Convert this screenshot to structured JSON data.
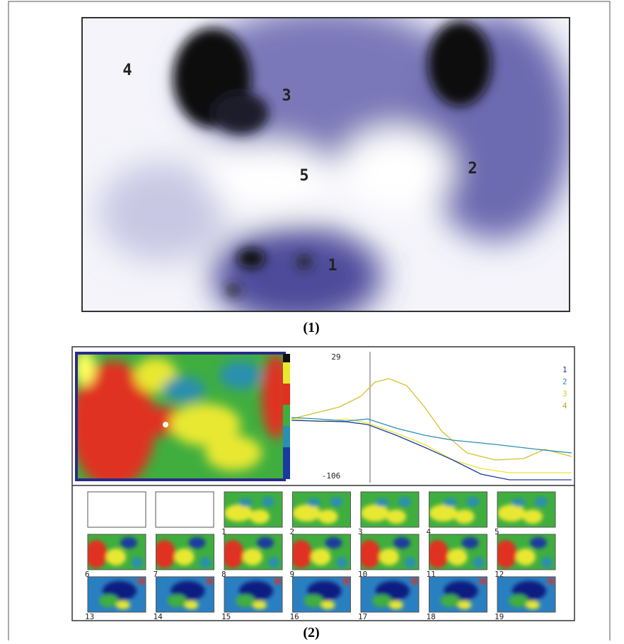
{
  "figure1": {
    "labels": [
      "4",
      "3",
      "5",
      "2",
      "1"
    ],
    "caption": "(1)"
  },
  "figure2": {
    "max_label": "29",
    "min_label": "-106",
    "legend": [
      "1",
      "2",
      "3",
      "4"
    ],
    "frame_labels": [
      "1",
      "2",
      "3",
      "4",
      "5",
      "6",
      "7",
      "8",
      "9",
      "10",
      "11",
      "12",
      "13",
      "14",
      "15",
      "16",
      "17",
      "18",
      "19"
    ],
    "caption": "(2)"
  }
}
